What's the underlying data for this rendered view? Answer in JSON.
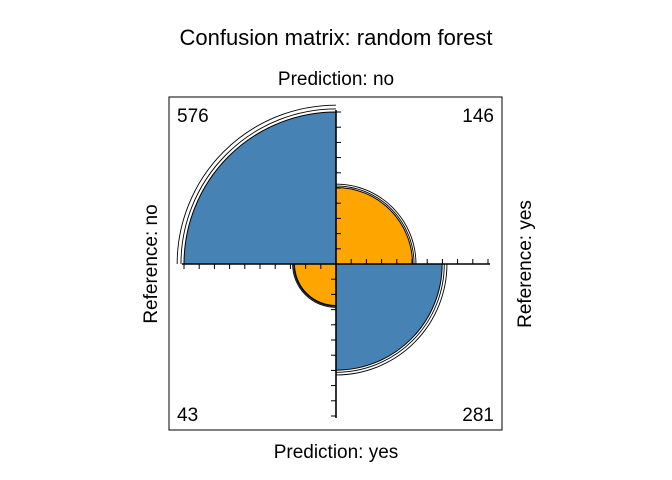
{
  "chart_data": {
    "type": "fourfold",
    "title": "Confusion matrix: random forest",
    "top_label": "Prediction: no",
    "bottom_label": "Prediction: yes",
    "left_label": "Reference: no",
    "right_label": "Reference: yes",
    "cells": [
      {
        "quadrant": "top-left",
        "prediction": "no",
        "reference": "no",
        "count": 576,
        "label": "576"
      },
      {
        "quadrant": "top-right",
        "prediction": "no",
        "reference": "yes",
        "count": 146,
        "label": "146"
      },
      {
        "quadrant": "bottom-left",
        "prediction": "yes",
        "reference": "no",
        "count": 43,
        "label": "43"
      },
      {
        "quadrant": "bottom-right",
        "prediction": "yes",
        "reference": "yes",
        "count": 281,
        "label": "281"
      }
    ],
    "colors": {
      "correct": "#4682B4",
      "incorrect": "#FFA500",
      "outline": "#000000"
    }
  }
}
